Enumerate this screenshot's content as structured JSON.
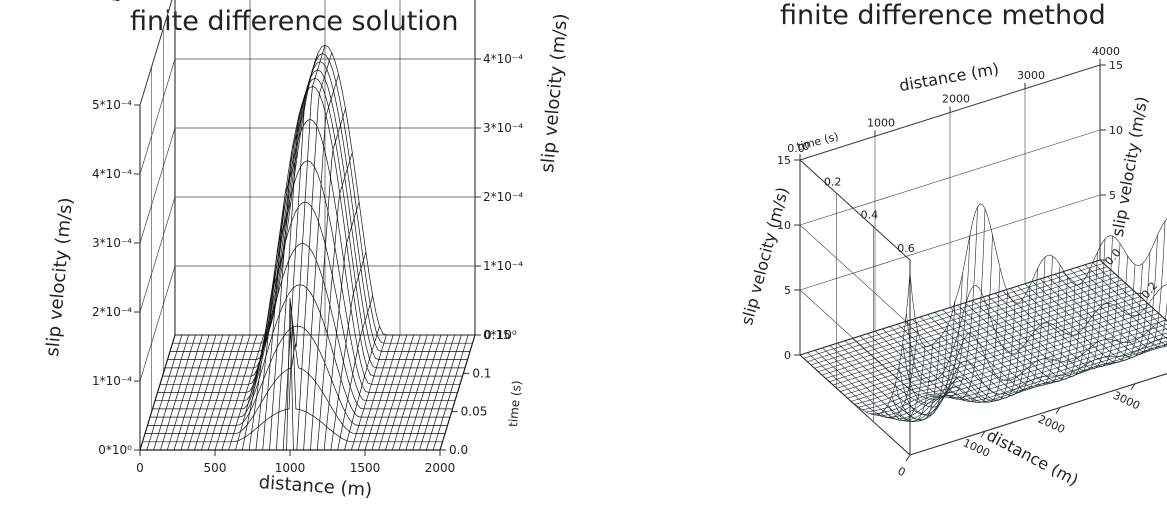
{
  "chart_data": [
    {
      "type": "surface",
      "title": "finite difference solution",
      "xlabel": "distance (m)",
      "ylabel": "time (s)",
      "zlabel": "slip velocity (m/s)",
      "xlim": [
        0,
        2000
      ],
      "ylim": [
        0,
        0.15
      ],
      "zlim": [
        0,
        0.0005
      ],
      "x_ticks": [
        "0",
        "500",
        "1000",
        "1500",
        "2000"
      ],
      "y_ticks": [
        "0.0",
        "0.05",
        "0.1",
        "0.15"
      ],
      "z_ticks": [
        "0*10⁰",
        "1*10⁻⁴",
        "2*10⁻⁴",
        "3*10⁻⁴",
        "4*10⁻⁴",
        "5*10⁻⁴"
      ],
      "features": [
        {
          "kind": "spike",
          "x": 1000,
          "peak_slip_velocity": 0.00022
        },
        {
          "kind": "bell",
          "x_center": 1000,
          "x_half_width": 400,
          "peak_slip_velocity": 0.00042
        }
      ]
    },
    {
      "type": "surface",
      "title": "finite difference method",
      "xlabel": "distance (m)",
      "ylabel": "time (s)",
      "zlabel": "slip velocity (m/s)",
      "xlim": [
        0,
        4000
      ],
      "ylim": [
        0,
        0.6
      ],
      "zlim": [
        0,
        15
      ],
      "x_ticks": [
        "0",
        "1000",
        "2000",
        "3000",
        "4000"
      ],
      "y_ticks": [
        "0.0",
        "0.2",
        "0.4",
        "0.6"
      ],
      "z_ticks": [
        "0",
        "5",
        "10",
        "15"
      ],
      "features": [
        {
          "kind": "spike",
          "x": 0,
          "t": 0.6,
          "peak_slip_velocity": 14
        },
        {
          "kind": "oscillating_ridge",
          "t": 0.6,
          "slip_velocity_range": [
            9,
            12
          ]
        }
      ]
    }
  ]
}
